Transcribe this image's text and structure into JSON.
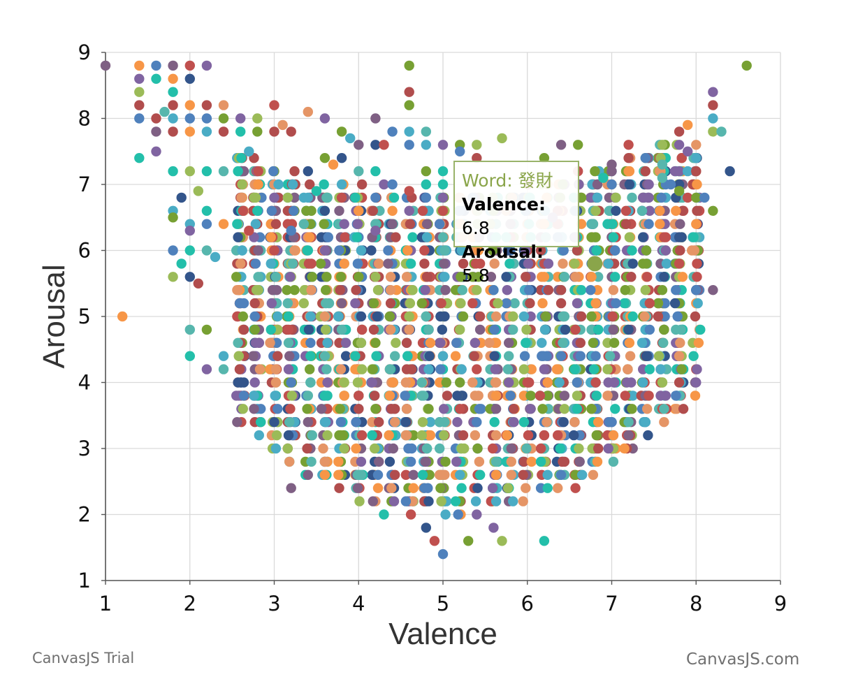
{
  "chart_data": {
    "type": "scatter",
    "title": "",
    "xlabel": "Valence",
    "ylabel": "Arousal",
    "xlim": [
      1,
      9
    ],
    "ylim": [
      1,
      9
    ],
    "xticks": [
      "1",
      "2",
      "3",
      "4",
      "5",
      "6",
      "7",
      "8",
      "9"
    ],
    "yticks": [
      "1",
      "2",
      "3",
      "4",
      "5",
      "6",
      "7",
      "8",
      "9"
    ],
    "grid": true,
    "legend": "none",
    "palette": [
      "#4f81bc",
      "#c0504e",
      "#9bbb58",
      "#23bfaa",
      "#8064a1",
      "#4aacc5",
      "#f79647",
      "#7f6084",
      "#77a033",
      "#33558b",
      "#e59566",
      "#57b6ad",
      "#b14d4d"
    ],
    "series": [
      {
        "points": [
          [
            1.0,
            8.8
          ],
          [
            1.4,
            8.8
          ],
          [
            1.6,
            8.8
          ],
          [
            1.8,
            8.8
          ],
          [
            2.0,
            8.8
          ],
          [
            2.2,
            8.8
          ],
          [
            4.6,
            8.8
          ],
          [
            8.6,
            8.8
          ],
          [
            1.4,
            8.6
          ],
          [
            1.6,
            8.6
          ],
          [
            1.8,
            8.6
          ],
          [
            2.0,
            8.6
          ],
          [
            1.4,
            8.4
          ],
          [
            1.8,
            8.4
          ],
          [
            4.6,
            8.4
          ],
          [
            8.2,
            8.4
          ],
          [
            1.4,
            8.2
          ],
          [
            1.8,
            8.2
          ],
          [
            2.0,
            8.2
          ],
          [
            2.2,
            8.2
          ],
          [
            2.4,
            8.2
          ],
          [
            3.0,
            8.2
          ],
          [
            4.6,
            8.2
          ],
          [
            8.2,
            8.2
          ],
          [
            1.7,
            8.1
          ],
          [
            3.4,
            8.1
          ],
          [
            1.4,
            8.0
          ],
          [
            1.6,
            8.0
          ],
          [
            1.8,
            8.0
          ],
          [
            2.0,
            8.0
          ],
          [
            2.2,
            8.0
          ],
          [
            2.4,
            8.0
          ],
          [
            2.6,
            8.0
          ],
          [
            2.8,
            8.0
          ],
          [
            3.6,
            8.0
          ],
          [
            4.2,
            8.0
          ],
          [
            8.2,
            8.0
          ],
          [
            3.1,
            7.9
          ],
          [
            7.9,
            7.9
          ],
          [
            1.6,
            7.8
          ],
          [
            1.8,
            7.8
          ],
          [
            2.0,
            7.8
          ],
          [
            2.2,
            7.8
          ],
          [
            2.4,
            7.8
          ],
          [
            2.6,
            7.8
          ],
          [
            2.8,
            7.8
          ],
          [
            3.0,
            7.8
          ],
          [
            3.2,
            7.8
          ],
          [
            3.8,
            7.8
          ],
          [
            4.4,
            7.8
          ],
          [
            4.6,
            7.8
          ],
          [
            4.8,
            7.8
          ],
          [
            7.8,
            7.8
          ],
          [
            8.2,
            7.8
          ],
          [
            8.3,
            7.8
          ],
          [
            3.9,
            7.7
          ],
          [
            5.7,
            7.7
          ],
          [
            4.0,
            7.6
          ],
          [
            4.2,
            7.6
          ],
          [
            4.3,
            7.6
          ],
          [
            4.6,
            7.6
          ],
          [
            4.8,
            7.6
          ],
          [
            5.0,
            7.6
          ],
          [
            5.2,
            7.6
          ],
          [
            5.4,
            7.6
          ],
          [
            6.4,
            7.6
          ],
          [
            6.6,
            7.6
          ],
          [
            7.2,
            7.6
          ],
          [
            7.6,
            7.6
          ],
          [
            7.8,
            7.6
          ],
          [
            1.6,
            7.5
          ],
          [
            2.7,
            7.5
          ],
          [
            5.2,
            7.5
          ],
          [
            7.9,
            7.5
          ],
          [
            1.4,
            7.4
          ],
          [
            3.6,
            7.4
          ],
          [
            3.8,
            7.4
          ],
          [
            5.4,
            7.4
          ],
          [
            6.2,
            7.4
          ],
          [
            7.2,
            7.4
          ],
          [
            7.4,
            7.4
          ],
          [
            8.0,
            7.4
          ],
          [
            3.7,
            7.3
          ],
          [
            7.0,
            7.3
          ],
          [
            7.6,
            7.3
          ],
          [
            1.8,
            7.2
          ],
          [
            2.0,
            7.2
          ],
          [
            2.2,
            7.2
          ],
          [
            2.4,
            7.2
          ],
          [
            3.4,
            7.2
          ],
          [
            4.0,
            7.2
          ],
          [
            4.2,
            7.2
          ],
          [
            4.8,
            7.2
          ],
          [
            5.0,
            7.2
          ],
          [
            6.6,
            7.2
          ],
          [
            6.8,
            7.2
          ],
          [
            7.0,
            7.2
          ],
          [
            7.2,
            7.2
          ],
          [
            7.4,
            7.2
          ],
          [
            7.8,
            7.2
          ],
          [
            7.9,
            7.2
          ],
          [
            8.0,
            7.2
          ],
          [
            8.4,
            7.2
          ],
          [
            6.9,
            7.1
          ],
          [
            7.6,
            7.1
          ],
          [
            4.3,
            7.0
          ],
          [
            4.4,
            7.0
          ],
          [
            4.8,
            7.0
          ],
          [
            5.0,
            7.0
          ],
          [
            7.0,
            7.0
          ],
          [
            7.7,
            7.0
          ],
          [
            2.1,
            6.9
          ],
          [
            3.5,
            6.9
          ],
          [
            4.6,
            6.9
          ],
          [
            7.8,
            6.9
          ],
          [
            1.9,
            6.8
          ],
          [
            3.4,
            6.8
          ],
          [
            3.8,
            6.8
          ],
          [
            4.2,
            6.8
          ],
          [
            4.8,
            6.8
          ],
          [
            5.0,
            6.8
          ],
          [
            7.9,
            6.8
          ],
          [
            8.0,
            6.8
          ],
          [
            8.1,
            6.8
          ],
          [
            1.8,
            6.6
          ],
          [
            2.2,
            6.6
          ],
          [
            4.0,
            6.6
          ],
          [
            4.6,
            6.6
          ],
          [
            5.0,
            6.6
          ],
          [
            8.2,
            6.6
          ],
          [
            1.8,
            6.5
          ],
          [
            6.3,
            6.5
          ],
          [
            2.0,
            6.4
          ],
          [
            2.2,
            6.4
          ],
          [
            2.4,
            6.4
          ],
          [
            4.4,
            6.4
          ],
          [
            5.8,
            6.4
          ],
          [
            8.0,
            6.4
          ],
          [
            2.0,
            6.3
          ],
          [
            2.7,
            6.3
          ],
          [
            3.2,
            6.3
          ],
          [
            4.2,
            6.3
          ],
          [
            5.0,
            6.2
          ],
          [
            7.8,
            6.2
          ],
          [
            1.8,
            6.0
          ],
          [
            2.0,
            6.0
          ],
          [
            2.2,
            6.0
          ],
          [
            2.3,
            5.9
          ],
          [
            1.9,
            5.8
          ],
          [
            7.8,
            5.8
          ],
          [
            1.8,
            5.6
          ],
          [
            2.0,
            5.6
          ],
          [
            2.1,
            5.5
          ],
          [
            8.2,
            5.4
          ],
          [
            1.2,
            5.0
          ],
          [
            2.0,
            4.8
          ],
          [
            2.2,
            4.8
          ],
          [
            2.0,
            4.4
          ],
          [
            2.4,
            4.4
          ],
          [
            2.2,
            4.2
          ],
          [
            2.4,
            4.2
          ],
          [
            7.8,
            4.0
          ],
          [
            7.2,
            3.4
          ],
          [
            7.4,
            3.4
          ],
          [
            3.2,
            2.4
          ],
          [
            4.3,
            2.0
          ],
          [
            4.8,
            1.8
          ],
          [
            5.6,
            1.8
          ],
          [
            4.9,
            1.6
          ],
          [
            5.3,
            1.6
          ],
          [
            5.7,
            1.6
          ],
          [
            6.2,
            1.6
          ],
          [
            5.0,
            1.4
          ]
        ]
      },
      {
        "points": []
      }
    ]
  },
  "tooltip": {
    "word_label": "Word:",
    "word": "發財",
    "valence_label": "Valence:",
    "valence": "6.8",
    "arousal_label": "Arousal:",
    "arousal": "5.8"
  },
  "credits": {
    "left": "CanvasJS Trial",
    "right": "CanvasJS.com"
  }
}
